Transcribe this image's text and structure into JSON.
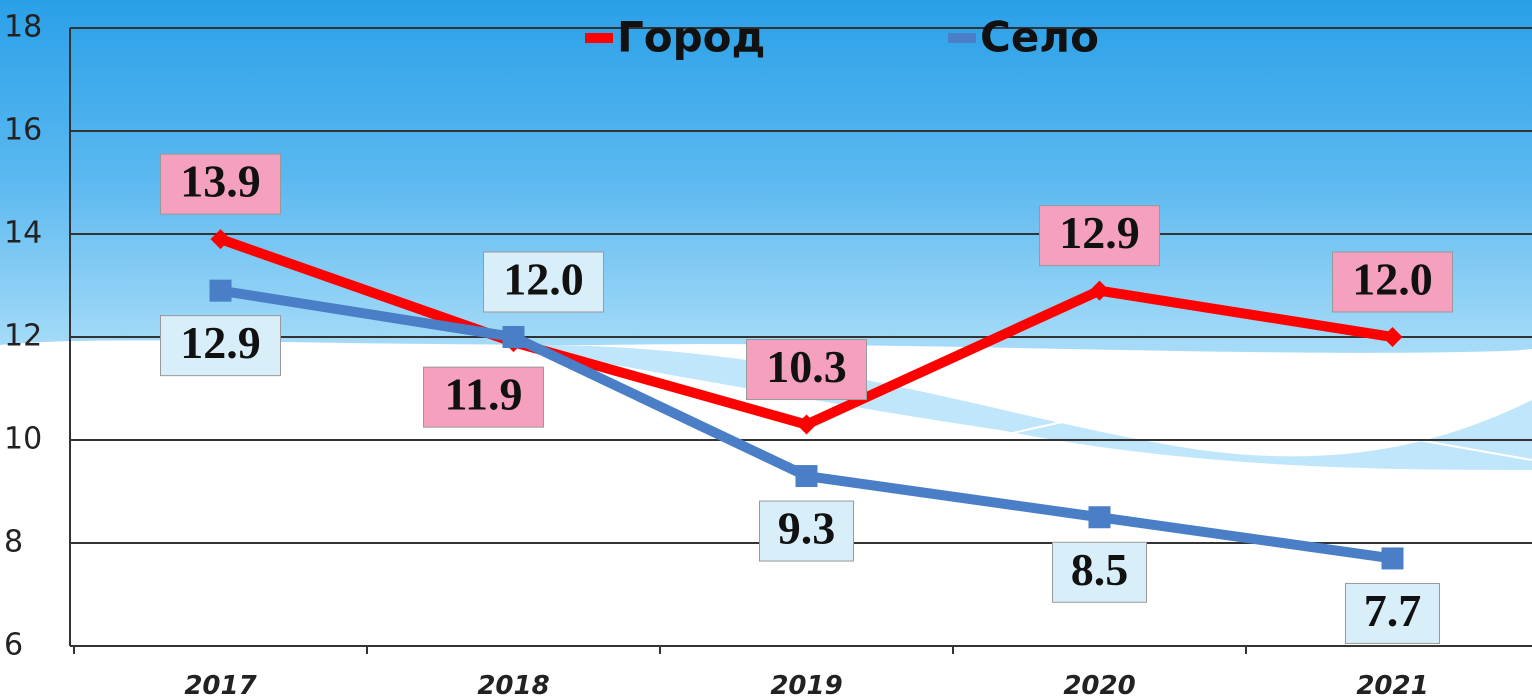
{
  "chart_data": {
    "type": "line",
    "categories": [
      "2017",
      "2018",
      "2019",
      "2020",
      "2021"
    ],
    "series": [
      {
        "name": "Город",
        "color": "#ff0000",
        "values": [
          13.9,
          11.9,
          10.3,
          12.9,
          12.0
        ],
        "value_labels": [
          "13.9",
          "11.9",
          "10.3",
          "12.9",
          "12.0"
        ]
      },
      {
        "name": "Село",
        "color": "#4a7fc8",
        "values": [
          12.9,
          12.0,
          9.3,
          8.5,
          7.7
        ],
        "value_labels": [
          "12.9",
          "12.0",
          "9.3",
          "8.5",
          "7.7"
        ]
      }
    ],
    "ylim": [
      6,
      18
    ],
    "yticks": [
      6,
      8,
      10,
      12,
      14,
      16,
      18
    ],
    "grid": true,
    "legend": "top"
  }
}
